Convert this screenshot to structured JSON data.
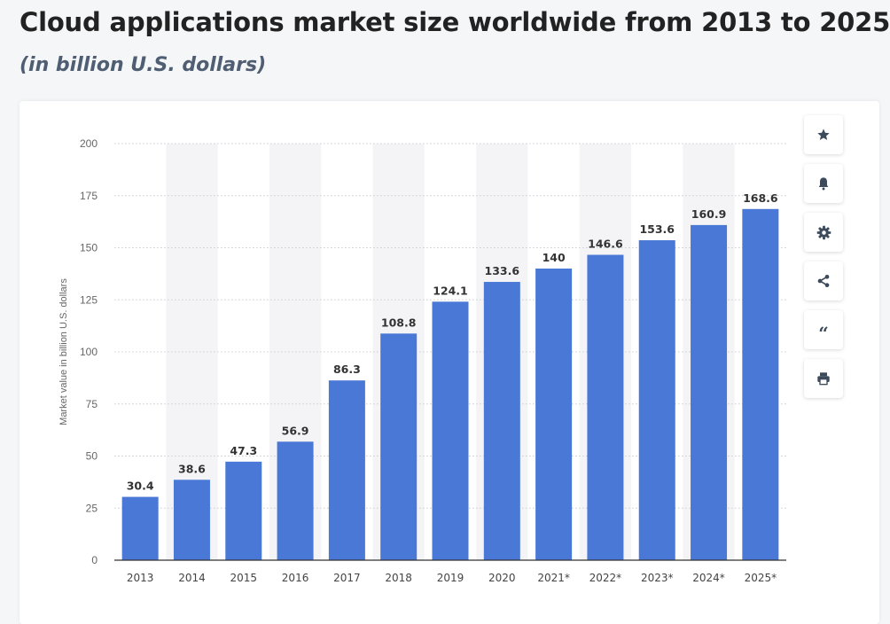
{
  "header": {
    "title": "Cloud applications market size worldwide from 2013 to 2025",
    "subtitle": "(in billion U.S. dollars)"
  },
  "toolbar": {
    "buttons": [
      {
        "name": "favorite-button",
        "icon": "star-icon"
      },
      {
        "name": "notification-button",
        "icon": "bell-icon"
      },
      {
        "name": "settings-button",
        "icon": "gear-icon"
      },
      {
        "name": "share-button",
        "icon": "share-icon"
      },
      {
        "name": "cite-button",
        "icon": "quote-icon"
      },
      {
        "name": "print-button",
        "icon": "printer-icon"
      }
    ]
  },
  "colors": {
    "bar": "#4a78d6",
    "band": "#f4f4f6",
    "icon": "#3d4a5c"
  },
  "chart_data": {
    "type": "bar",
    "categories": [
      "2013",
      "2014",
      "2015",
      "2016",
      "2017",
      "2018",
      "2019",
      "2020",
      "2021*",
      "2022*",
      "2023*",
      "2024*",
      "2025*"
    ],
    "values": [
      30.4,
      38.6,
      47.3,
      56.9,
      86.3,
      108.8,
      124.1,
      133.6,
      140,
      146.6,
      153.6,
      160.9,
      168.6
    ],
    "value_labels": [
      "30.4",
      "38.6",
      "47.3",
      "56.9",
      "86.3",
      "108.8",
      "124.1",
      "133.6",
      "140",
      "146.6",
      "153.6",
      "160.9",
      "168.6"
    ],
    "title": "Cloud applications market size worldwide from 2013 to 2025",
    "subtitle": "(in billion U.S. dollars)",
    "xlabel": "",
    "ylabel": "Market value in billion U.S. dollars",
    "ylim": [
      0,
      200
    ],
    "yticks": [
      "0",
      "25",
      "50",
      "75",
      "100",
      "125",
      "150",
      "175",
      "200"
    ],
    "grid": true,
    "alternating_bands": true
  }
}
